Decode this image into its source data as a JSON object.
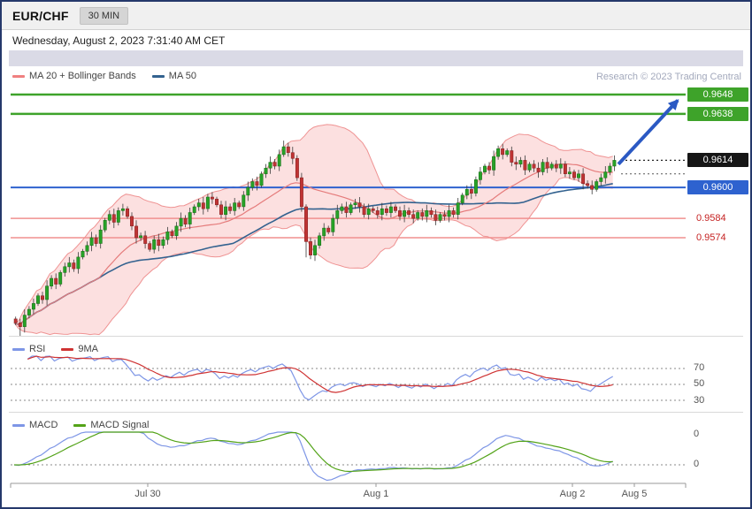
{
  "header": {
    "symbol": "EUR/CHF",
    "timeframe": "30 MIN",
    "datetime": "Wednesday, August 2, 2023 7:31:40 AM CET",
    "credit": "Research © 2023 Trading Central"
  },
  "legend": {
    "main": [
      {
        "label": "MA 20 + Bollinger Bands",
        "color": "#f08080"
      },
      {
        "label": "MA 50",
        "color": "#33628f"
      }
    ],
    "rsi": [
      {
        "label": "RSI",
        "color": "#7e96e6"
      },
      {
        "label": "9MA",
        "color": "#cf3333"
      }
    ],
    "macd": [
      {
        "label": "MACD",
        "color": "#7e96e6"
      },
      {
        "label": "MACD Signal",
        "color": "#53a318"
      }
    ]
  },
  "chart_data": {
    "type": "candlestick",
    "title": "EUR/CHF 30 MIN",
    "price_ylim": [
      0.9522,
      0.9671
    ],
    "closes": [
      0.953,
      0.9528,
      0.9534,
      0.9537,
      0.954,
      0.9544,
      0.9542,
      0.9549,
      0.9553,
      0.955,
      0.9556,
      0.9559,
      0.9561,
      0.9558,
      0.9564,
      0.9567,
      0.957,
      0.9574,
      0.9571,
      0.9578,
      0.9583,
      0.9586,
      0.9582,
      0.9588,
      0.9589,
      0.9585,
      0.958,
      0.9574,
      0.9575,
      0.9571,
      0.9568,
      0.9573,
      0.957,
      0.9573,
      0.9577,
      0.9575,
      0.958,
      0.9584,
      0.9581,
      0.9587,
      0.959,
      0.9592,
      0.9589,
      0.9595,
      0.9594,
      0.9591,
      0.9586,
      0.959,
      0.9588,
      0.9592,
      0.959,
      0.9596,
      0.96,
      0.9603,
      0.9601,
      0.9607,
      0.961,
      0.9613,
      0.9611,
      0.9617,
      0.9621,
      0.9618,
      0.9615,
      0.9605,
      0.959,
      0.9572,
      0.9565,
      0.957,
      0.9575,
      0.9579,
      0.9577,
      0.9584,
      0.9588,
      0.959,
      0.9587,
      0.9591,
      0.9592,
      0.959,
      0.9586,
      0.9589,
      0.9588,
      0.9586,
      0.9589,
      0.9587,
      0.959,
      0.9588,
      0.9585,
      0.9588,
      0.9586,
      0.9584,
      0.9587,
      0.9585,
      0.9588,
      0.9586,
      0.9583,
      0.9586,
      0.9585,
      0.9588,
      0.9586,
      0.9592,
      0.9596,
      0.9599,
      0.9597,
      0.9604,
      0.9608,
      0.9611,
      0.9609,
      0.9616,
      0.962,
      0.9617,
      0.9619,
      0.9613,
      0.9612,
      0.9614,
      0.9609,
      0.9612,
      0.961,
      0.9608,
      0.9613,
      0.961,
      0.9612,
      0.961,
      0.9612,
      0.9607,
      0.9608,
      0.9605,
      0.9607,
      0.9602,
      0.9601,
      0.9599,
      0.9603,
      0.9605,
      0.9608,
      0.9611,
      0.9614
    ],
    "bollinger": {
      "window": 20,
      "stddev": 2
    },
    "ma50_window": 50,
    "levels": [
      {
        "price": 0.9648,
        "label": "0.9648",
        "role": "resistance",
        "line_style": "solid",
        "line_color": "#3ea32a",
        "line_width": 2.5,
        "label_bg": "#3ea32a",
        "label_fg": "#ffffff"
      },
      {
        "price": 0.9638,
        "label": "0.9638",
        "role": "resistance",
        "line_style": "solid",
        "line_color": "#3ea32a",
        "line_width": 2.5,
        "label_bg": "#3ea32a",
        "label_fg": "#ffffff"
      },
      {
        "price": 0.9614,
        "label": "0.9614",
        "role": "last-price",
        "line_style": "dotted",
        "line_color": "#222222",
        "line_width": 1.2,
        "label_bg": "#161616",
        "label_fg": "#ffffff"
      },
      {
        "price": 0.9607,
        "label": "",
        "role": "guide",
        "line_style": "dotted",
        "line_color": "#555555",
        "line_width": 1
      },
      {
        "price": 0.96,
        "label": "0.9600",
        "role": "support",
        "line_style": "solid",
        "line_color": "#2e62cf",
        "line_width": 2,
        "label_bg": "#2e62cf",
        "label_fg": "#ffffff"
      },
      {
        "price": 0.9584,
        "label": "0.9584",
        "role": "pivot",
        "line_style": "solid",
        "line_color": "#f0908f",
        "line_width": 1.5,
        "label_bg": "",
        "label_fg": "#c52222"
      },
      {
        "price": 0.9574,
        "label": "0.9574",
        "role": "pivot",
        "line_style": "solid",
        "line_color": "#f0908f",
        "line_width": 1.5,
        "label_bg": "",
        "label_fg": "#c52222"
      }
    ],
    "arrow": {
      "from_price": 0.9612,
      "to_price": 0.9645,
      "color": "#2b59c3"
    },
    "rsi": {
      "period": 14,
      "ma_period": 9,
      "levels": [
        70,
        50,
        30
      ],
      "colors": {
        "rsi": "#7e96e6",
        "ma": "#cf3333"
      }
    },
    "macd": {
      "fast": 12,
      "slow": 26,
      "signal": 9,
      "zero_labels": [
        "0",
        "0"
      ],
      "colors": {
        "macd": "#7e96e6",
        "signal": "#53a318"
      }
    },
    "x_axis": {
      "labels": [
        "Jul 30",
        "Aug 1",
        "Aug 2",
        "Aug 5"
      ],
      "tick_x": [
        165,
        423,
        645,
        715
      ]
    }
  }
}
